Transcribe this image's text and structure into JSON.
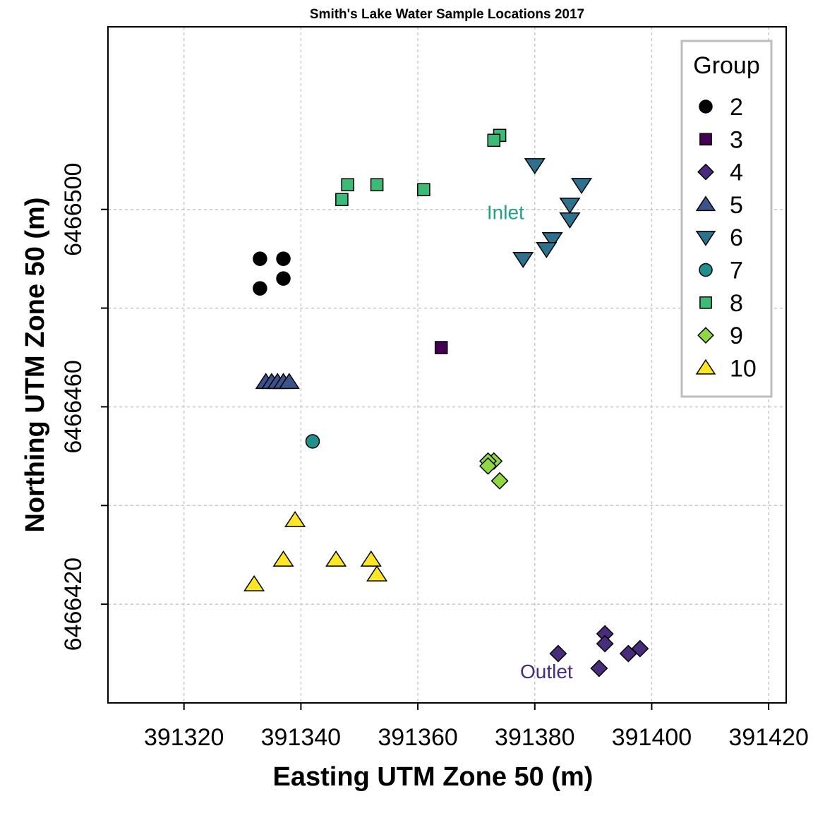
{
  "chart_data": {
    "type": "scatter",
    "title": "Smith's Lake Water Sample Locations 2017",
    "xlabel": "Easting UTM Zone 50 (m)",
    "ylabel": "Northing UTM Zone 50 (m)",
    "xlim": [
      391307,
      391423
    ],
    "ylim": [
      6466400,
      6466537
    ],
    "x_ticks": [
      391320,
      391340,
      391360,
      391380,
      391400,
      391420
    ],
    "x_tick_labels": [
      "391320",
      "391340",
      "391360",
      "391380",
      "391400",
      "391420"
    ],
    "y_ticks": [
      6466420,
      6466440,
      6466460,
      6466480,
      6466500
    ],
    "y_tick_labels": [
      "6466420",
      "6466460",
      "6466500"
    ],
    "grid": true,
    "legend": {
      "title": "Group",
      "position": "top-right"
    },
    "series": [
      {
        "name": "2",
        "shape": "circle",
        "color": "#000000",
        "points": [
          [
            391333,
            6466490
          ],
          [
            391337,
            6466490
          ],
          [
            391337,
            6466486
          ],
          [
            391333,
            6466484
          ]
        ]
      },
      {
        "name": "3",
        "shape": "square",
        "color": "#440154",
        "points": [
          [
            391364,
            6466472
          ]
        ]
      },
      {
        "name": "4",
        "shape": "diamond",
        "color": "#472D7B",
        "points": [
          [
            391392,
            6466414
          ],
          [
            391392,
            6466412
          ],
          [
            391398,
            6466411
          ],
          [
            391384,
            6466410
          ],
          [
            391396,
            6466410
          ],
          [
            391391,
            6466407
          ]
        ]
      },
      {
        "name": "5",
        "shape": "triangle-up",
        "color": "#3B528B",
        "points": [
          [
            391334,
            6466465
          ],
          [
            391335,
            6466465
          ],
          [
            391336,
            6466465
          ],
          [
            391337,
            6466465
          ],
          [
            391338,
            6466465
          ]
        ]
      },
      {
        "name": "6",
        "shape": "triangle-down",
        "color": "#2C728E",
        "points": [
          [
            391380,
            6466509
          ],
          [
            391388,
            6466505
          ],
          [
            391386,
            6466501
          ],
          [
            391386,
            6466498
          ],
          [
            391383,
            6466494
          ],
          [
            391382,
            6466492
          ],
          [
            391378,
            6466490
          ]
        ]
      },
      {
        "name": "7",
        "shape": "circle",
        "color": "#21908C",
        "points": [
          [
            391342,
            6466453
          ]
        ]
      },
      {
        "name": "8",
        "shape": "square",
        "color": "#3BBB75",
        "points": [
          [
            391374,
            6466515
          ],
          [
            391373,
            6466514
          ],
          [
            391348,
            6466505
          ],
          [
            391353,
            6466505
          ],
          [
            391361,
            6466504
          ],
          [
            391347,
            6466502
          ]
        ]
      },
      {
        "name": "9",
        "shape": "diamond",
        "color": "#8FD744",
        "points": [
          [
            391373,
            6466449
          ],
          [
            391372,
            6466449
          ],
          [
            391372,
            6466448
          ],
          [
            391374,
            6466445
          ]
        ]
      },
      {
        "name": "10",
        "shape": "triangle-up",
        "color": "#FDE725",
        "points": [
          [
            391339,
            6466437
          ],
          [
            391337,
            6466429
          ],
          [
            391346,
            6466429
          ],
          [
            391352,
            6466429
          ],
          [
            391353,
            6466426
          ],
          [
            391332,
            6466424
          ]
        ]
      }
    ],
    "annotations": [
      {
        "text": "Inlet",
        "x": 391375,
        "y": 6466498,
        "color": "#21A08C"
      },
      {
        "text": "Outlet",
        "x": 391382,
        "y": 6466405,
        "color": "#472D7B"
      }
    ]
  }
}
